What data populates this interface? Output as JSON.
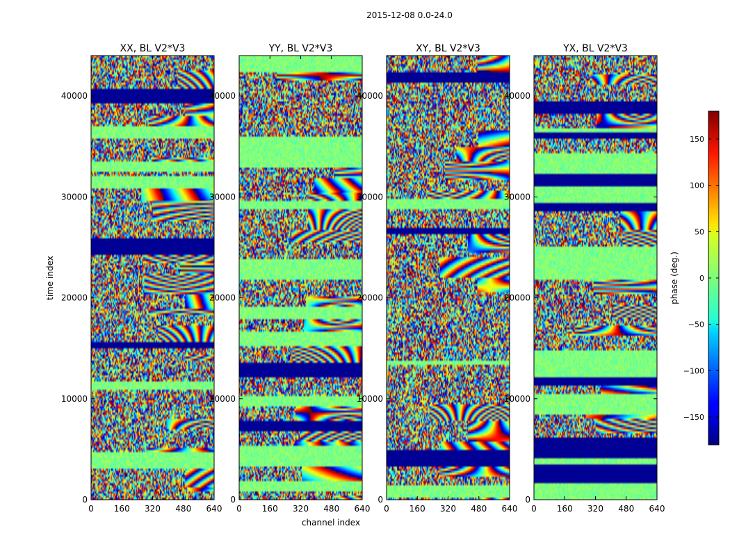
{
  "figure": {
    "suptitle": "2015-12-08 0.0-24.0"
  },
  "chart_data": {
    "type": "heatmap",
    "shared_xlabel": "channel index",
    "shared_ylabel": "time index",
    "xlim": [
      0,
      640
    ],
    "ylim": [
      0,
      44000
    ],
    "x_ticks": [
      0,
      160,
      320,
      480,
      640
    ],
    "y_ticks": [
      0,
      10000,
      20000,
      30000,
      40000
    ],
    "panels": [
      {
        "title": "XX, BL V2*V3"
      },
      {
        "title": "YY, BL V2*V3"
      },
      {
        "title": "XY, BL V2*V3"
      },
      {
        "title": "YX, BL V2*V3"
      }
    ],
    "colorbar": {
      "label": "phase (deg.)",
      "range": [
        -180,
        180
      ],
      "ticks": [
        -150,
        -100,
        -50,
        0,
        50,
        100,
        150
      ],
      "colormap": "jet"
    }
  }
}
